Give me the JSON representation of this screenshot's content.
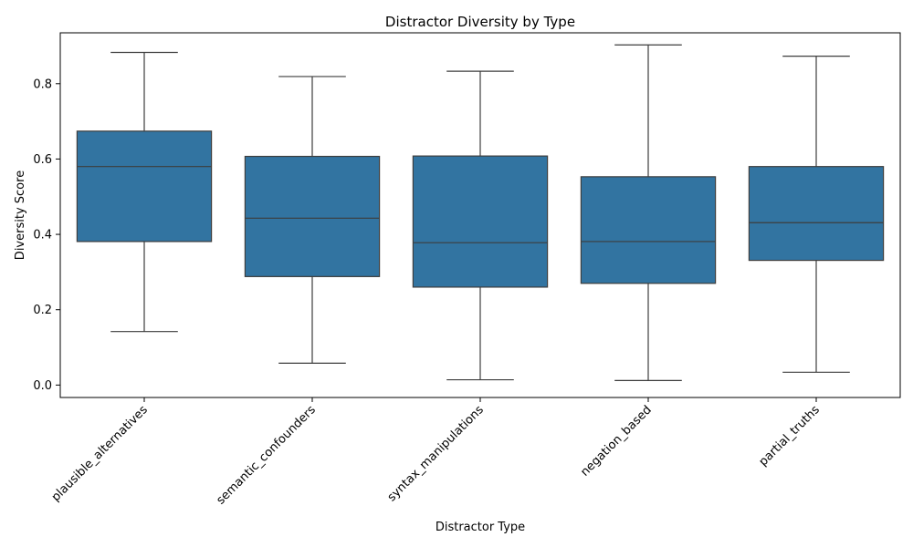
{
  "chart_data": {
    "type": "box",
    "title": "Distractor Diversity by Type",
    "xlabel": "Distractor Type",
    "ylabel": "Diversity Score",
    "ylim": [
      -0.033,
      0.935
    ],
    "yticks": [
      0.0,
      0.2,
      0.4,
      0.6,
      0.8
    ],
    "ytick_labels": [
      "0.0",
      "0.2",
      "0.4",
      "0.6",
      "0.8"
    ],
    "categories": [
      "plausible_alternatives",
      "semantic_confounders",
      "syntax_manipulations",
      "negation_based",
      "partial_truths"
    ],
    "boxes": [
      {
        "whisker_low": 0.142,
        "q1": 0.381,
        "median": 0.58,
        "q3": 0.674,
        "whisker_high": 0.883
      },
      {
        "whisker_low": 0.058,
        "q1": 0.288,
        "median": 0.443,
        "q3": 0.607,
        "whisker_high": 0.819
      },
      {
        "whisker_low": 0.014,
        "q1": 0.26,
        "median": 0.378,
        "q3": 0.608,
        "whisker_high": 0.833
      },
      {
        "whisker_low": 0.012,
        "q1": 0.27,
        "median": 0.381,
        "q3": 0.553,
        "whisker_high": 0.903
      },
      {
        "whisker_low": 0.034,
        "q1": 0.331,
        "median": 0.431,
        "q3": 0.58,
        "whisker_high": 0.873
      }
    ],
    "box_color": "#3274a1",
    "line_color": "#3d3d3d",
    "grid": false,
    "legend": "none"
  }
}
